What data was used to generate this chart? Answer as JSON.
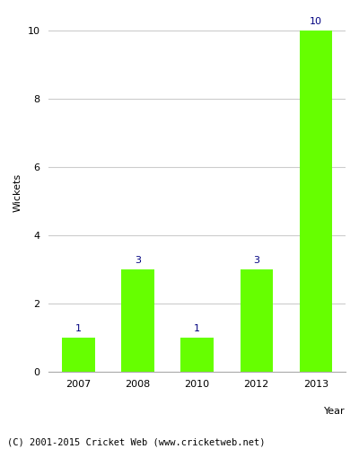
{
  "categories": [
    "2007",
    "2008",
    "2010",
    "2012",
    "2013"
  ],
  "values": [
    1,
    3,
    1,
    3,
    10
  ],
  "bar_color": "#66ff00",
  "bar_edgecolor": "#66ff00",
  "xlabel": "Year",
  "ylabel": "Wickets",
  "ylim": [
    0,
    10.5
  ],
  "yticks": [
    0,
    2,
    4,
    6,
    8,
    10
  ],
  "label_color": "#000080",
  "label_fontsize": 8,
  "tick_fontsize": 8,
  "xlabel_fontsize": 8,
  "ylabel_fontsize": 8,
  "footer_text": "(C) 2001-2015 Cricket Web (www.cricketweb.net)",
  "footer_fontsize": 7.5,
  "background_color": "#ffffff",
  "grid_color": "#cccccc"
}
